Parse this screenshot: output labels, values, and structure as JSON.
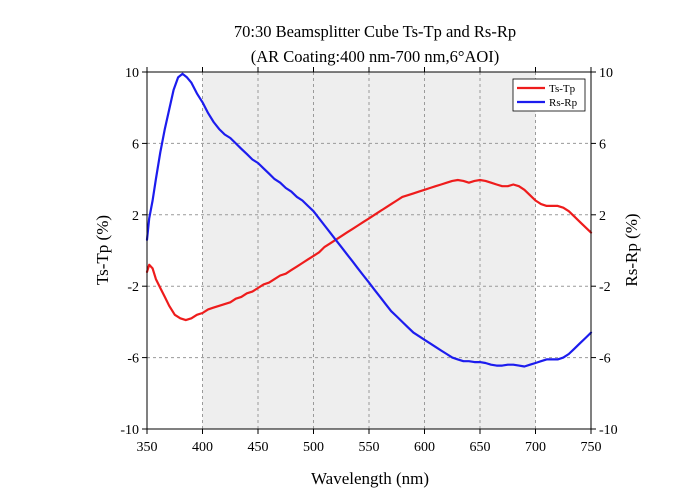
{
  "chart_data": {
    "type": "line",
    "title": "70:30 Beamsplitter Cube Ts-Tp and Rs-Rp",
    "subtitle": "(AR Coating:400 nm-700 nm,6°AOI)",
    "xlabel": "Wavelength (nm)",
    "ylabel_left": "Ts-Tp (%)",
    "ylabel_right": "Rs-Rp (%)",
    "xlim": [
      350,
      750
    ],
    "ylim": [
      -10,
      10
    ],
    "x_ticks": [
      "350",
      "400",
      "450",
      "500",
      "550",
      "600",
      "650",
      "700",
      "750"
    ],
    "y_ticks": [
      "10",
      "6",
      "2",
      "-2",
      "-6",
      "-10"
    ],
    "shaded_band": [
      400,
      700
    ],
    "grid": true,
    "legend_position": "top-right",
    "series": [
      {
        "name": "Ts-Tp",
        "color": "#ee1c1c",
        "axis": "left",
        "x": [
          350,
          352,
          355,
          358,
          362,
          366,
          370,
          375,
          380,
          385,
          390,
          395,
          400,
          405,
          410,
          415,
          420,
          425,
          430,
          435,
          440,
          445,
          450,
          455,
          460,
          465,
          470,
          475,
          480,
          485,
          490,
          495,
          500,
          505,
          510,
          515,
          520,
          525,
          530,
          535,
          540,
          545,
          550,
          555,
          560,
          565,
          570,
          575,
          580,
          585,
          590,
          595,
          600,
          605,
          610,
          615,
          620,
          625,
          630,
          635,
          640,
          645,
          650,
          655,
          660,
          665,
          670,
          675,
          680,
          685,
          690,
          695,
          700,
          705,
          710,
          715,
          720,
          725,
          730,
          735,
          740,
          745,
          750
        ],
        "values": [
          -1.2,
          -0.8,
          -1.0,
          -1.6,
          -2.1,
          -2.6,
          -3.1,
          -3.6,
          -3.8,
          -3.9,
          -3.8,
          -3.6,
          -3.5,
          -3.3,
          -3.2,
          -3.1,
          -3.0,
          -2.9,
          -2.7,
          -2.6,
          -2.4,
          -2.3,
          -2.1,
          -1.9,
          -1.8,
          -1.6,
          -1.4,
          -1.3,
          -1.1,
          -0.9,
          -0.7,
          -0.5,
          -0.3,
          -0.1,
          0.2,
          0.4,
          0.6,
          0.8,
          1.0,
          1.2,
          1.4,
          1.6,
          1.8,
          2.0,
          2.2,
          2.4,
          2.6,
          2.8,
          3.0,
          3.1,
          3.2,
          3.3,
          3.4,
          3.5,
          3.6,
          3.7,
          3.8,
          3.9,
          3.95,
          3.9,
          3.8,
          3.9,
          3.95,
          3.9,
          3.8,
          3.7,
          3.6,
          3.6,
          3.7,
          3.6,
          3.4,
          3.1,
          2.8,
          2.6,
          2.5,
          2.5,
          2.5,
          2.4,
          2.2,
          1.9,
          1.6,
          1.3,
          1.0
        ]
      },
      {
        "name": "Rs-Rp",
        "color": "#1c1cee",
        "axis": "right",
        "x": [
          350,
          352,
          355,
          358,
          362,
          366,
          370,
          374,
          378,
          382,
          386,
          390,
          395,
          400,
          405,
          410,
          415,
          420,
          425,
          430,
          435,
          440,
          445,
          450,
          455,
          460,
          465,
          470,
          475,
          480,
          485,
          490,
          495,
          500,
          505,
          510,
          515,
          520,
          525,
          530,
          535,
          540,
          545,
          550,
          555,
          560,
          565,
          570,
          575,
          580,
          585,
          590,
          595,
          600,
          605,
          610,
          615,
          620,
          625,
          630,
          635,
          640,
          645,
          650,
          655,
          660,
          665,
          670,
          675,
          680,
          685,
          690,
          695,
          700,
          705,
          710,
          715,
          720,
          725,
          730,
          735,
          740,
          745,
          750
        ],
        "values": [
          0.6,
          1.8,
          2.8,
          4.0,
          5.5,
          6.8,
          7.9,
          9.0,
          9.7,
          9.9,
          9.7,
          9.4,
          8.8,
          8.3,
          7.7,
          7.2,
          6.8,
          6.5,
          6.3,
          6.0,
          5.7,
          5.4,
          5.1,
          4.9,
          4.6,
          4.3,
          4.0,
          3.8,
          3.5,
          3.3,
          3.0,
          2.8,
          2.5,
          2.2,
          1.8,
          1.4,
          1.0,
          0.6,
          0.2,
          -0.2,
          -0.6,
          -1.0,
          -1.4,
          -1.8,
          -2.2,
          -2.6,
          -3.0,
          -3.4,
          -3.7,
          -4.0,
          -4.3,
          -4.6,
          -4.8,
          -5.0,
          -5.2,
          -5.4,
          -5.6,
          -5.8,
          -6.0,
          -6.1,
          -6.2,
          -6.2,
          -6.25,
          -6.25,
          -6.3,
          -6.4,
          -6.45,
          -6.45,
          -6.4,
          -6.4,
          -6.45,
          -6.5,
          -6.4,
          -6.3,
          -6.2,
          -6.1,
          -6.1,
          -6.1,
          -6.0,
          -5.8,
          -5.5,
          -5.2,
          -4.9,
          -4.6
        ]
      }
    ]
  }
}
